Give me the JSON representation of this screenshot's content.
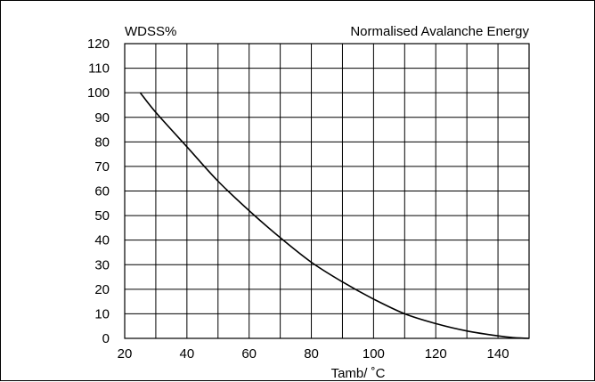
{
  "chart_data": {
    "type": "line",
    "title_left": "WDSS%",
    "title_right": "Normalised Avalanche Energy",
    "xlabel": "Tamb/ ˚C",
    "ylabel": "WDSS%",
    "xlim": [
      20,
      150
    ],
    "ylim": [
      0,
      120
    ],
    "x_ticks": [
      "20",
      "40",
      "60",
      "80",
      "100",
      "120",
      "140"
    ],
    "y_ticks": [
      "0",
      "10",
      "20",
      "30",
      "40",
      "50",
      "60",
      "70",
      "80",
      "90",
      "100",
      "110",
      "120"
    ],
    "grid": true,
    "series": [
      {
        "x": [
          25,
          30,
          40,
          50,
          60,
          70,
          80,
          90,
          100,
          110,
          120,
          130,
          140,
          145,
          150
        ],
        "values": [
          100,
          92,
          78,
          64,
          52,
          41,
          31,
          23,
          16,
          10,
          6,
          3,
          1,
          0.3,
          0
        ]
      }
    ]
  }
}
